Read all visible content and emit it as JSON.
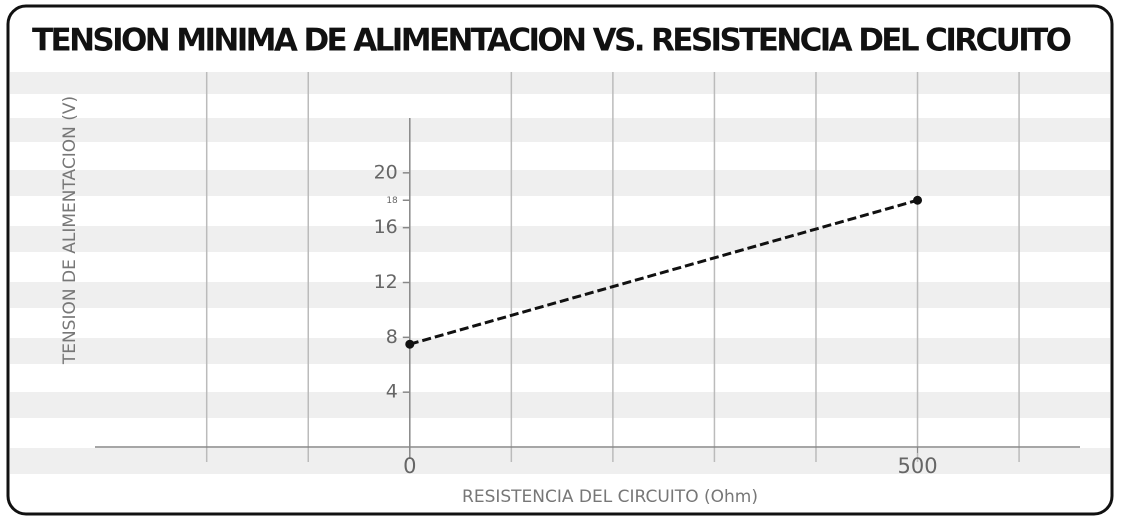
{
  "chart_data": {
    "type": "line",
    "title": "TENSION MINIMA DE ALIMENTACION VS. RESISTENCIA DEL CIRCUITO",
    "xlabel": "RESISTENCIA DEL CIRCUITO (Ohm)",
    "ylabel": "TENSION DE ALIMENTACION (V)",
    "x": [
      0,
      500
    ],
    "values": [
      7.5,
      18
    ],
    "color": "#111111",
    "xlim": [
      -310,
      660
    ],
    "ylim": [
      0,
      24
    ],
    "xticks": [
      0,
      500
    ],
    "yticks": [
      4,
      8,
      12,
      16,
      18,
      20
    ],
    "xgrid": [
      -200,
      -100,
      100,
      200,
      300,
      400,
      500,
      600
    ],
    "grid": true
  }
}
